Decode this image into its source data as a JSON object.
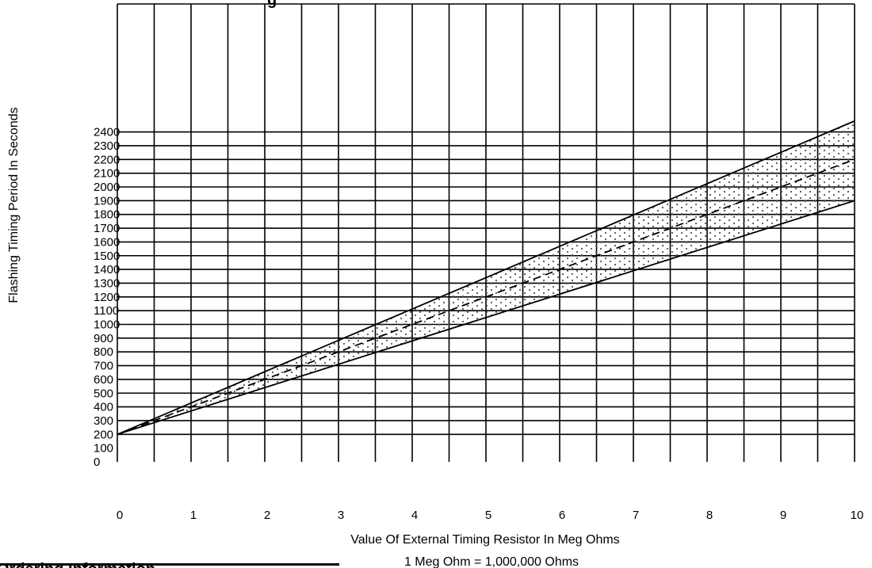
{
  "chart_data": {
    "type": "line",
    "title": "",
    "xlabel": "Value Of External Timing Resistor In Meg Ohms",
    "xlabel_note": "1 Meg Ohm = 1,000,000 Ohms",
    "ylabel": "Flashing Timing Period In Seconds",
    "xlim": [
      0,
      10
    ],
    "ylim": [
      0,
      2400
    ],
    "x_ticks": [
      "0",
      "1",
      "2",
      "3",
      "4",
      "5",
      "6",
      "7",
      "8",
      "9",
      "10"
    ],
    "y_ticks": [
      "0",
      "100",
      "200",
      "300",
      "400",
      "500",
      "600",
      "700",
      "800",
      "900",
      "1000",
      "1100",
      "1200",
      "1300",
      "1400",
      "1500",
      "1600",
      "1700",
      "1800",
      "1900",
      "2000",
      "2100",
      "2200",
      "2300",
      "2400"
    ],
    "grid": true,
    "x_grid_step": 0.5,
    "y_grid_step": 100,
    "series": [
      {
        "style": "solid",
        "x": [
          0,
          10
        ],
        "y": [
          200,
          2480
        ]
      },
      {
        "style": "dashed",
        "x": [
          0,
          10
        ],
        "y": [
          200,
          2200
        ]
      },
      {
        "style": "solid",
        "x": [
          0,
          10
        ],
        "y": [
          200,
          1900
        ]
      }
    ],
    "shaded_band": {
      "pattern": "dots",
      "upper_series": 0,
      "lower_series": 2
    }
  },
  "cut_text": {
    "top": "g",
    "bottom_left": "Ordering Information"
  },
  "colors": {
    "ink": "#000000",
    "background": "#ffffff",
    "dots": "#555555"
  }
}
